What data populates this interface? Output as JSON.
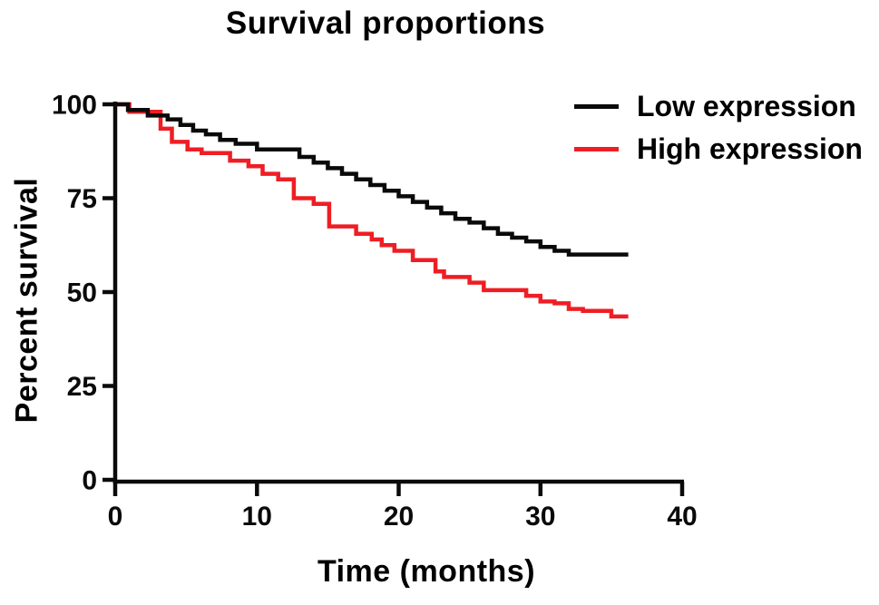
{
  "figure": {
    "title": "Survival proportions",
    "x_label": "Time (months)",
    "y_label": "Percent survival"
  },
  "chart_data": {
    "type": "line",
    "subtype": "kaplan-meier-step",
    "title": "Survival proportions",
    "xlabel": "Time (months)",
    "ylabel": "Percent survival",
    "xlim": [
      0,
      40
    ],
    "ylim": [
      0,
      100
    ],
    "x_ticks": [
      0,
      10,
      20,
      30,
      40
    ],
    "y_ticks": [
      0,
      25,
      50,
      75,
      100
    ],
    "grid": false,
    "legend_position": "top-right",
    "axis_color": "#0a0a0a",
    "series": [
      {
        "name": "Low expression",
        "color": "#0a0a0a",
        "points": [
          [
            0,
            100
          ],
          [
            0.9,
            98.5
          ],
          [
            2.3,
            97
          ],
          [
            3.7,
            96
          ],
          [
            4.6,
            94.5
          ],
          [
            5.5,
            93
          ],
          [
            6.4,
            92
          ],
          [
            7.4,
            90.5
          ],
          [
            8.5,
            89.5
          ],
          [
            10,
            88
          ],
          [
            13,
            86
          ],
          [
            14,
            84.5
          ],
          [
            15,
            83
          ],
          [
            16,
            81.5
          ],
          [
            17,
            80
          ],
          [
            18,
            78.5
          ],
          [
            19,
            77
          ],
          [
            20,
            75.5
          ],
          [
            21,
            74
          ],
          [
            22,
            72.5
          ],
          [
            23,
            71
          ],
          [
            24,
            69.5
          ],
          [
            25,
            68.5
          ],
          [
            26,
            67
          ],
          [
            27,
            65.5
          ],
          [
            28,
            64.5
          ],
          [
            29,
            63.5
          ],
          [
            30,
            62
          ],
          [
            31,
            61
          ],
          [
            32,
            60
          ],
          [
            36.2,
            60
          ]
        ]
      },
      {
        "name": "High expression",
        "color": "#ee1e24",
        "points": [
          [
            0,
            100
          ],
          [
            1,
            98
          ],
          [
            3.2,
            93.5
          ],
          [
            4,
            90
          ],
          [
            5.1,
            88
          ],
          [
            6.1,
            87
          ],
          [
            8.1,
            85
          ],
          [
            9.4,
            83.5
          ],
          [
            10.4,
            81.5
          ],
          [
            11.5,
            80
          ],
          [
            12.6,
            75
          ],
          [
            14,
            73.5
          ],
          [
            15.1,
            67.5
          ],
          [
            17,
            65.5
          ],
          [
            18.1,
            64
          ],
          [
            18.8,
            62.5
          ],
          [
            19.7,
            61
          ],
          [
            21,
            58.5
          ],
          [
            22.6,
            55.5
          ],
          [
            23.2,
            54
          ],
          [
            25,
            52.5
          ],
          [
            26,
            50.5
          ],
          [
            29,
            49
          ],
          [
            30,
            47.5
          ],
          [
            31,
            47
          ],
          [
            32,
            45.5
          ],
          [
            33,
            45
          ],
          [
            35,
            43.5
          ],
          [
            36.2,
            43.5
          ]
        ]
      }
    ]
  }
}
